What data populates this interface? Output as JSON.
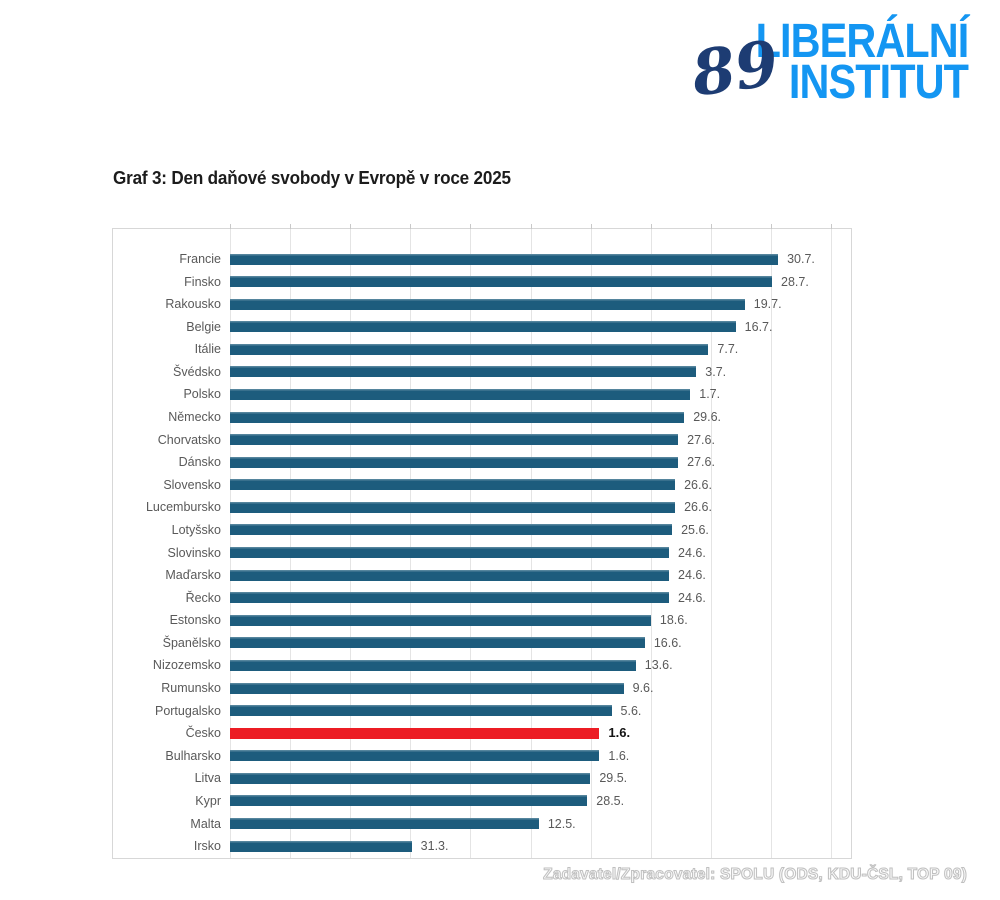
{
  "logo": {
    "line1": "LIBERÁLNÍ",
    "line2": "INSTITUT",
    "mark": "89",
    "blue": "#1496f2",
    "navy": "#1d3c73"
  },
  "title": "Graf 3: Den daňové svobody v Evropě v roce 2025",
  "watermark": "Zadavatel/Zpracovatel: SPOLU (ODS, KDU-ČSL, TOP 09)",
  "chart_data": {
    "type": "bar",
    "orientation": "horizontal",
    "title": "Graf 3: Den daňové svobody v Evropě v roce 2025",
    "categories": [
      "Francie",
      "Finsko",
      "Rakousko",
      "Belgie",
      "Itálie",
      "Švédsko",
      "Polsko",
      "Německo",
      "Chorvatsko",
      "Dánsko",
      "Slovensko",
      "Lucembursko",
      "Lotyšsko",
      "Slovinsko",
      "Maďarsko",
      "Řecko",
      "Estonsko",
      "Španělsko",
      "Nizozemsko",
      "Rumunsko",
      "Portugalsko",
      "Česko",
      "Bulharsko",
      "Litva",
      "Kypr",
      "Malta",
      "Irsko"
    ],
    "labels": [
      "30.7.",
      "28.7.",
      "19.7.",
      "16.7.",
      "7.7.",
      "3.7.",
      "1.7.",
      "29.6.",
      "27.6.",
      "27.6.",
      "26.6.",
      "26.6.",
      "25.6.",
      "24.6.",
      "24.6.",
      "24.6.",
      "18.6.",
      "16.6.",
      "13.6.",
      "9.6.",
      "5.6.",
      "1.6.",
      "1.6.",
      "29.5.",
      "28.5.",
      "12.5.",
      "31.3."
    ],
    "values_day_of_year": [
      211,
      209,
      200,
      197,
      188,
      184,
      182,
      180,
      178,
      178,
      177,
      177,
      176,
      175,
      175,
      175,
      169,
      167,
      164,
      160,
      156,
      152,
      152,
      149,
      148,
      132,
      90
    ],
    "highlight_index": 21,
    "highlight_category": "Česko",
    "axis": {
      "day_min": 30,
      "day_max": 231,
      "gridline_step_days": 20,
      "gridline_count": 11,
      "grid": true,
      "value_axis_labels_visible": false
    },
    "colors": {
      "bar": "#1d5c7d",
      "highlight": "#ec1c24",
      "value_text": "#595959",
      "highlight_value_text": "#141414",
      "gridline": "#e4e4e4"
    },
    "legend_position": "none"
  }
}
